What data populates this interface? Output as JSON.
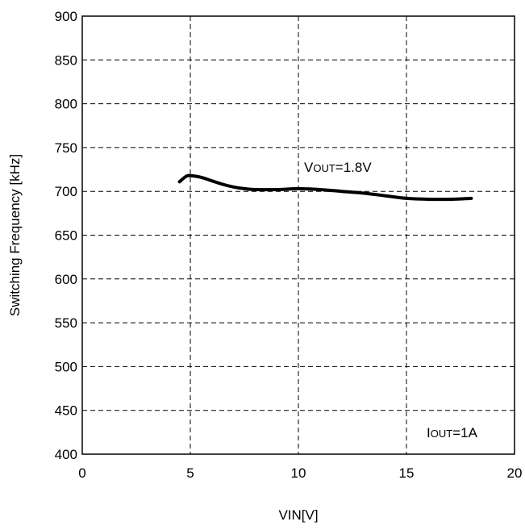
{
  "chart_data": {
    "type": "line",
    "title": "",
    "xlabel": "VIN[V]",
    "ylabel": "Switching Frequency [kHz]",
    "xlim": [
      0,
      20
    ],
    "ylim": [
      400,
      900
    ],
    "xticks": [
      0,
      5,
      10,
      15,
      20
    ],
    "yticks": [
      400,
      450,
      500,
      550,
      600,
      650,
      700,
      750,
      800,
      850,
      900
    ],
    "grid": true,
    "series": [
      {
        "x": [
          4.5,
          4.8,
          5.0,
          5.5,
          6.0,
          6.5,
          7.0,
          7.5,
          8.0,
          9.0,
          10.0,
          11.0,
          12.0,
          13.0,
          14.0,
          15.0,
          16.0,
          17.0,
          18.0
        ],
        "y": [
          711,
          717,
          718,
          716,
          712,
          708,
          705,
          703,
          702,
          702,
          703,
          702,
          700,
          698,
          695,
          692,
          691,
          691,
          692
        ]
      }
    ],
    "annotations": [
      {
        "id": "vout",
        "main": "V",
        "sub": "OUT",
        "rest": "=1.8V"
      },
      {
        "id": "iout",
        "main": "I",
        "sub": "OUT",
        "rest": "=1A"
      }
    ]
  }
}
